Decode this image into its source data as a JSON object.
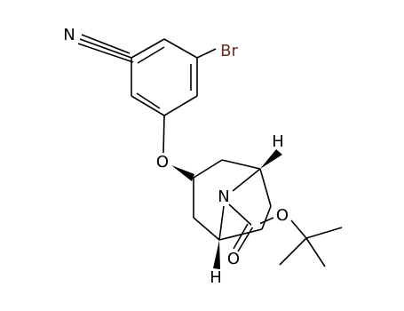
{
  "atoms": {
    "nitrile_n": "N",
    "br": "Br",
    "ether_o": "O",
    "h_top": "H",
    "amine_n": "N",
    "ester_o": "O",
    "carbonyl_o": "O",
    "h_bottom": "H"
  }
}
